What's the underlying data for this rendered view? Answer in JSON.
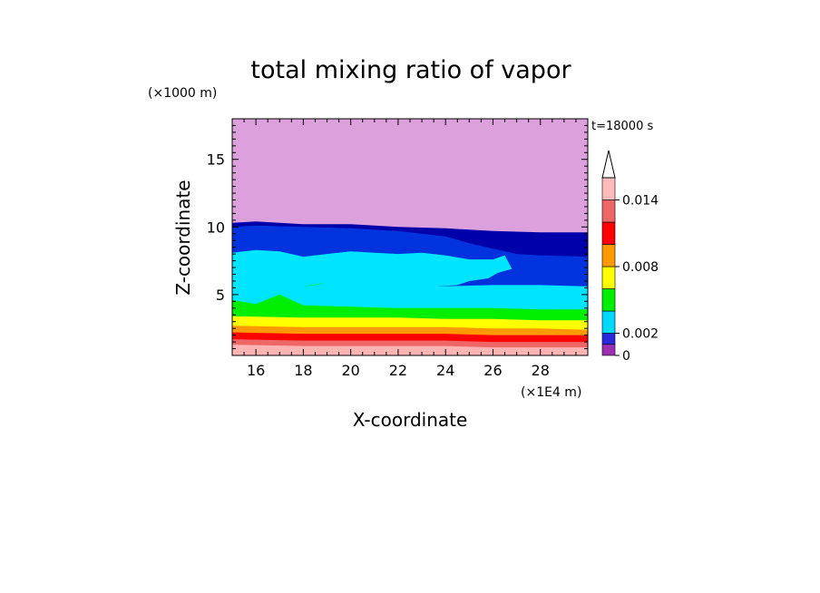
{
  "chart_data": {
    "type": "heatmap",
    "title": "total mixing ratio of vapor",
    "xlabel": "X-coordinate",
    "ylabel": "Z-coordinate",
    "x_unit": "(×1E4 m)",
    "y_unit": "(×1000 m)",
    "time_label": "t=18000 s",
    "xlim": [
      15,
      30
    ],
    "ylim": [
      0.5,
      18
    ],
    "x_ticks": [
      16,
      18,
      20,
      22,
      24,
      26,
      28
    ],
    "y_ticks": [
      5,
      10,
      15
    ],
    "colorbar": {
      "levels": [
        0,
        0.001,
        0.002,
        0.004,
        0.006,
        0.008,
        0.01,
        0.012,
        0.014,
        0.016
      ],
      "colors": [
        "#9b2fb0",
        "#2a2adc",
        "#00d8ff",
        "#00ee00",
        "#ffff00",
        "#ff9900",
        "#ff0000",
        "#ee6666",
        "#ffbbbb"
      ],
      "over_color": "#ffffff",
      "tick_labels": [
        {
          "value": 0,
          "label": "0"
        },
        {
          "value": 0.002,
          "label": "0.002"
        },
        {
          "value": 0.008,
          "label": "0.008"
        },
        {
          "value": 0.014,
          "label": "0.014"
        }
      ]
    },
    "band_colors": {
      "lt_0_0005": "#dca0dc",
      "0_0005_to_0_001": "#0000aa",
      "0_001_to_0_002": "#0033dd",
      "0_002_to_0_004": "#00e5ff",
      "0_004_to_0_006": "#00ee00",
      "0_006_to_0_008": "#ffff00",
      "0_008_to_0_010": "#ff9900",
      "0_010_to_0_012": "#ff0000",
      "0_012_to_0_014": "#ee6666",
      "gt_0_014": "#ffb4b4"
    },
    "contour_boundaries": [
      {
        "name": "0.0005",
        "points": [
          [
            15,
            10.3
          ],
          [
            16,
            10.4
          ],
          [
            18,
            10.2
          ],
          [
            20,
            10.2
          ],
          [
            22,
            10.0
          ],
          [
            24,
            9.9
          ],
          [
            26,
            9.7
          ],
          [
            28,
            9.6
          ],
          [
            30,
            9.6
          ]
        ]
      },
      {
        "name": "0.001",
        "points": [
          [
            15,
            10.0
          ],
          [
            16,
            10.1
          ],
          [
            18,
            10.0
          ],
          [
            20,
            9.9
          ],
          [
            22,
            9.7
          ],
          [
            24,
            9.3
          ],
          [
            25,
            8.8
          ],
          [
            26,
            8.4
          ],
          [
            27,
            8.0
          ],
          [
            28,
            7.9
          ],
          [
            30,
            7.8
          ]
        ]
      },
      {
        "name": "0.002",
        "points": [
          [
            15,
            8.1
          ],
          [
            16,
            8.3
          ],
          [
            17,
            8.2
          ],
          [
            18,
            7.8
          ],
          [
            19,
            8.0
          ],
          [
            20,
            8.2
          ],
          [
            21,
            8.1
          ],
          [
            22,
            8.0
          ],
          [
            23,
            8.1
          ],
          [
            24,
            7.9
          ],
          [
            25,
            7.6
          ],
          [
            26,
            7.6
          ],
          [
            26.5,
            7.9
          ],
          [
            26.8,
            6.9
          ],
          [
            26.2,
            6.6
          ],
          [
            25.8,
            6.2
          ],
          [
            25.0,
            6.0
          ],
          [
            24.5,
            5.7
          ],
          [
            23.6,
            5.6
          ],
          [
            26,
            5.7
          ],
          [
            28,
            5.7
          ],
          [
            30,
            5.6
          ]
        ]
      },
      {
        "name": "0.004",
        "points": [
          [
            15,
            4.6
          ],
          [
            16,
            4.3
          ],
          [
            17,
            5.0
          ],
          [
            18,
            5.6
          ],
          [
            19,
            5.9
          ],
          [
            18.5,
            5.7
          ],
          [
            17,
            5.4
          ],
          [
            16,
            5.0
          ],
          [
            17,
            5.0
          ],
          [
            18,
            4.2
          ],
          [
            20,
            4.1
          ],
          [
            22,
            4.0
          ],
          [
            24,
            4.0
          ],
          [
            26,
            4.0
          ],
          [
            28,
            3.9
          ],
          [
            30,
            3.9
          ]
        ]
      },
      {
        "name": "0.006",
        "points": [
          [
            15,
            3.4
          ],
          [
            18,
            3.3
          ],
          [
            20,
            3.3
          ],
          [
            22,
            3.3
          ],
          [
            24,
            3.2
          ],
          [
            26,
            3.2
          ],
          [
            28,
            3.1
          ],
          [
            30,
            3.1
          ]
        ]
      },
      {
        "name": "0.008",
        "points": [
          [
            15,
            2.7
          ],
          [
            18,
            2.6
          ],
          [
            20,
            2.6
          ],
          [
            22,
            2.6
          ],
          [
            24,
            2.6
          ],
          [
            26,
            2.5
          ],
          [
            28,
            2.5
          ],
          [
            30,
            2.4
          ]
        ]
      },
      {
        "name": "0.010",
        "points": [
          [
            15,
            2.2
          ],
          [
            18,
            2.1
          ],
          [
            20,
            2.1
          ],
          [
            22,
            2.1
          ],
          [
            24,
            2.1
          ],
          [
            26,
            2.0
          ],
          [
            28,
            2.0
          ],
          [
            30,
            2.0
          ]
        ]
      },
      {
        "name": "0.012",
        "points": [
          [
            15,
            1.7
          ],
          [
            18,
            1.6
          ],
          [
            20,
            1.6
          ],
          [
            22,
            1.6
          ],
          [
            24,
            1.6
          ],
          [
            26,
            1.5
          ],
          [
            28,
            1.5
          ],
          [
            30,
            1.5
          ]
        ]
      },
      {
        "name": "0.014",
        "points": [
          [
            15,
            1.3
          ],
          [
            18,
            1.2
          ],
          [
            20,
            1.2
          ],
          [
            22,
            1.2
          ],
          [
            24,
            1.2
          ],
          [
            26,
            1.1
          ],
          [
            28,
            1.1
          ],
          [
            30,
            1.1
          ]
        ]
      }
    ]
  }
}
